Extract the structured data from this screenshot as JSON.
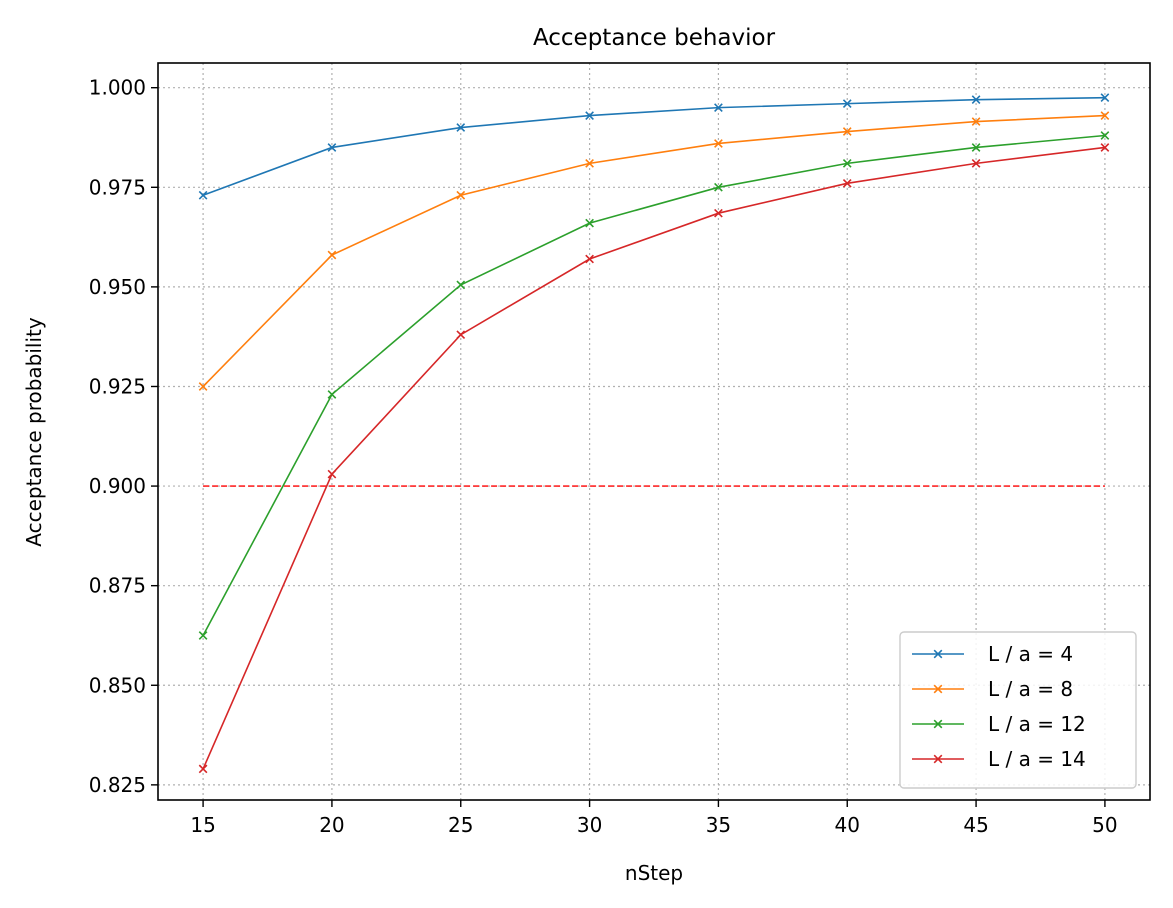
{
  "chart_data": {
    "type": "line",
    "title": "Acceptance behavior",
    "xlabel": "nStep",
    "ylabel": "Acceptance probability",
    "x": [
      15,
      20,
      25,
      30,
      35,
      40,
      45,
      50
    ],
    "xlim": [
      13.25,
      51.75
    ],
    "ylim": [
      0.8212,
      1.0062
    ],
    "xticks": [
      15,
      20,
      25,
      30,
      35,
      40,
      45,
      50
    ],
    "yticks": [
      0.825,
      0.85,
      0.875,
      0.9,
      0.925,
      0.95,
      0.975,
      1.0
    ],
    "ytick_labels": [
      "0.825",
      "0.850",
      "0.875",
      "0.900",
      "0.925",
      "0.950",
      "0.975",
      "1.000"
    ],
    "grid": true,
    "legend_position": "bottom-right",
    "series": [
      {
        "name": "L / a = 4",
        "color": "#1f77b4",
        "values": [
          0.973,
          0.985,
          0.99,
          0.993,
          0.995,
          0.996,
          0.997,
          0.9975
        ]
      },
      {
        "name": "L / a = 8",
        "color": "#ff7f0e",
        "values": [
          0.925,
          0.958,
          0.973,
          0.981,
          0.986,
          0.989,
          0.9915,
          0.993
        ]
      },
      {
        "name": "L / a = 12",
        "color": "#2ca02c",
        "values": [
          0.8625,
          0.923,
          0.9505,
          0.966,
          0.975,
          0.981,
          0.985,
          0.988
        ]
      },
      {
        "name": "L / a = 14",
        "color": "#d62728",
        "values": [
          0.829,
          0.903,
          0.938,
          0.957,
          0.9685,
          0.976,
          0.981,
          0.985
        ]
      }
    ],
    "reference_line": {
      "y": 0.9,
      "x_range": [
        15,
        50
      ],
      "color": "#ff0000",
      "style": "dashed"
    }
  }
}
